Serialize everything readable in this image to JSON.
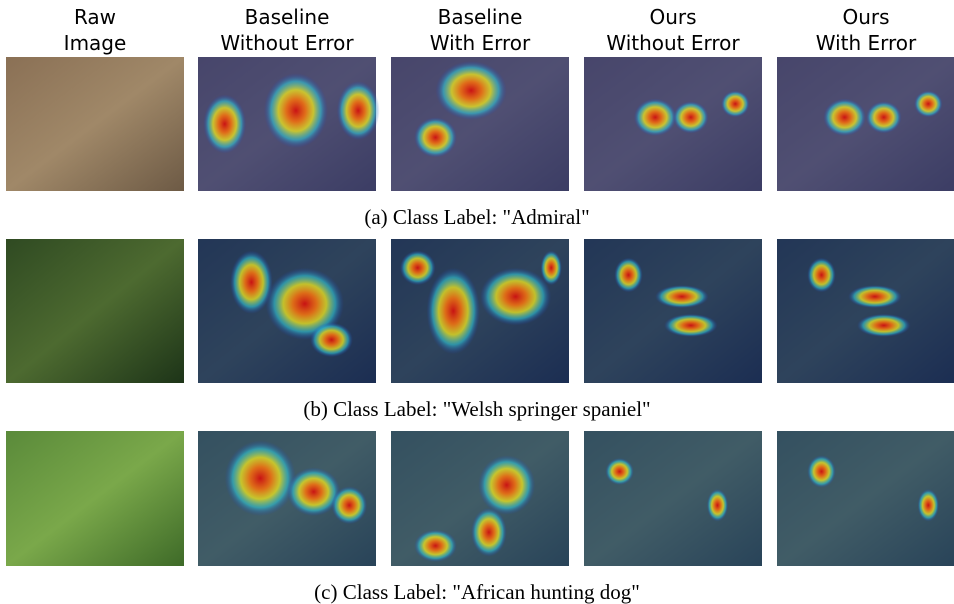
{
  "columns": [
    {
      "line1": "Raw",
      "line2": "Image"
    },
    {
      "line1": "Baseline",
      "line2": "Without Error"
    },
    {
      "line1": "Baseline",
      "line2": "With Error"
    },
    {
      "line1": "Ours",
      "line2": "Without Error"
    },
    {
      "line1": "Ours",
      "line2": "With Error"
    }
  ],
  "rows": [
    {
      "caption": "(a) Class Label: \"Admiral\""
    },
    {
      "caption": "(b) Class Label: \"Welsh springer spaniel\""
    },
    {
      "caption": "(c) Class Label: \"African hunting dog\""
    }
  ]
}
